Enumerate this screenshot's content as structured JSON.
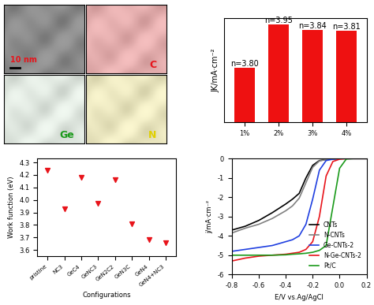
{
  "images": {
    "panels": [
      {
        "label": "10 nm",
        "color": "#e8141b",
        "background": "#8a8a8a"
      },
      {
        "label": "C",
        "color": "#e8141b",
        "background": "#f3b3b3"
      },
      {
        "label": "Ge",
        "color": "#1a9a1a",
        "background": "#eef7ee"
      },
      {
        "label": "N",
        "color": "#e0d000",
        "background": "#fbf6c8"
      }
    ]
  },
  "chart_data": [
    {
      "type": "bar",
      "categories": [
        "1%",
        "2%",
        "3%",
        "4%"
      ],
      "values": [
        15.8,
        28.2,
        26.7,
        26.5
      ],
      "annotations": [
        "n=3.80",
        "n=3.95",
        "n=3.84",
        "n=3.81"
      ],
      "color": "#ee1111",
      "y_label": "JK/mA·cm⁻²",
      "ylim": [
        0,
        30
      ],
      "tick_labels": "x"
    },
    {
      "type": "scatter",
      "x_label": "Configurations",
      "y_label": "Work function (eV)",
      "categories": [
        "pristine",
        "NC3",
        "GeC4",
        "GeNC3",
        "GeN2C2",
        "GeN3C",
        "GeN4",
        "GeN4+NC3"
      ],
      "values": [
        4.24,
        3.93,
        4.18,
        3.97,
        4.16,
        3.81,
        3.68,
        3.66
      ],
      "color": "#e8141b",
      "marker": "triangle_down",
      "ylim": [
        3.55,
        4.33
      ],
      "yticks": [
        3.6,
        3.7,
        3.8,
        3.9,
        4.0,
        4.1,
        4.2,
        4.3
      ]
    },
    {
      "type": "line",
      "x_label": "E/V vs.Ag/AgCl",
      "y_label": "j/mA·cm⁻²",
      "x": [
        -0.8,
        -0.7,
        -0.6,
        -0.5,
        -0.4,
        -0.35,
        -0.3,
        -0.25,
        -0.2,
        -0.15,
        -0.1,
        -0.05,
        0.0,
        0.05,
        0.1,
        0.2
      ],
      "series": [
        {
          "name": "CNTs",
          "color": "#000000",
          "values": [
            -3.7,
            -3.5,
            -3.2,
            -2.8,
            -2.35,
            -2.1,
            -1.8,
            -1.0,
            -0.35,
            -0.1,
            -0.05,
            -0.02,
            0,
            0,
            0,
            0
          ]
        },
        {
          "name": "N-CNTs",
          "color": "#808080",
          "values": [
            -3.85,
            -3.6,
            -3.4,
            -3.1,
            -2.7,
            -2.45,
            -2.05,
            -1.25,
            -0.45,
            -0.12,
            -0.05,
            -0.02,
            0,
            0,
            0,
            0
          ]
        },
        {
          "name": "Ge-CNTs-2",
          "color": "#1f3fe0",
          "values": [
            -4.8,
            -4.7,
            -4.6,
            -4.5,
            -4.3,
            -4.2,
            -4.0,
            -3.4,
            -2.1,
            -0.6,
            -0.1,
            -0.03,
            0,
            0,
            0,
            0
          ]
        },
        {
          "name": "N-Ge-CNTs-2",
          "color": "#e8141b",
          "values": [
            -5.3,
            -5.15,
            -5.05,
            -5.0,
            -4.95,
            -4.9,
            -4.85,
            -4.7,
            -4.3,
            -3.0,
            -0.9,
            -0.15,
            -0.03,
            0,
            0,
            0
          ]
        },
        {
          "name": "Pt/C",
          "color": "#1a9a1a",
          "values": [
            -5.0,
            -5.0,
            -5.0,
            -5.0,
            -4.98,
            -4.95,
            -4.93,
            -4.9,
            -4.85,
            -4.75,
            -4.5,
            -2.5,
            -0.5,
            -0.02,
            0,
            0
          ]
        }
      ],
      "legend": "lower right",
      "xlim": [
        -0.8,
        0.2
      ],
      "xticks": [
        -0.8,
        -0.6,
        -0.4,
        -0.2,
        0.0,
        0.2
      ],
      "ylim": [
        -6,
        0
      ],
      "yticks": [
        -6,
        -5,
        -4,
        -3,
        -2,
        -1,
        0
      ]
    }
  ]
}
